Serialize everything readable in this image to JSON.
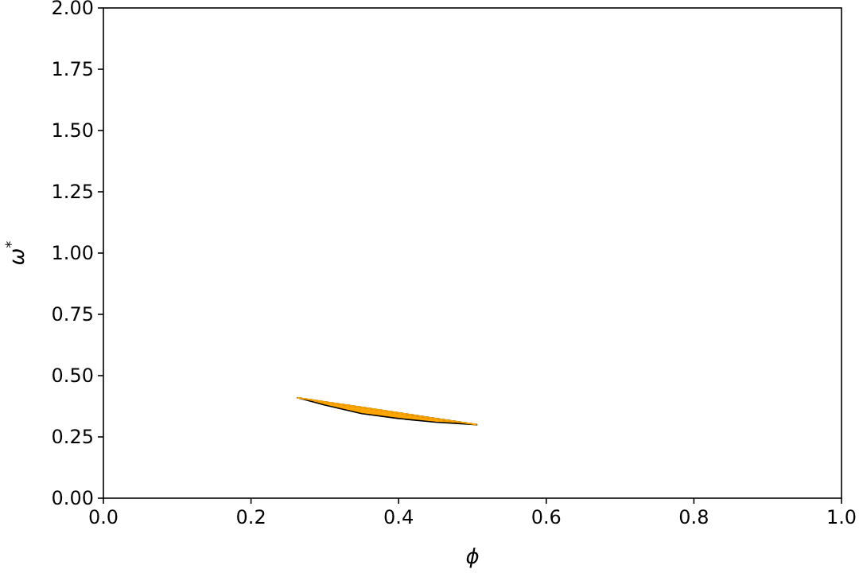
{
  "chart_data": {
    "type": "line",
    "xlabel": "ϕ",
    "ylabel": "ω$^{*}$",
    "xlim": [
      0,
      1
    ],
    "ylim": [
      0,
      2
    ],
    "xticks": [
      {
        "value": 0,
        "label": "0.0"
      },
      0.2,
      0.4,
      0.6,
      0.8,
      {
        "value": 1,
        "label": "1.0"
      }
    ],
    "yticks": [
      {
        "value": 0,
        "label": "0.00"
      },
      {
        "value": 0.25,
        "label": "0.25"
      },
      {
        "value": 0.5,
        "label": "0.50"
      },
      {
        "value": 0.75,
        "label": "0.75"
      },
      {
        "value": 1,
        "label": "1.00"
      },
      {
        "value": 1.25,
        "label": "1.25"
      },
      {
        "value": 1.5,
        "label": "1.50"
      },
      {
        "value": 1.75,
        "label": "1.75"
      },
      {
        "value": 2,
        "label": "2.00"
      }
    ],
    "series": [
      {
        "color": "#ffa500",
        "x": [
          0.263,
          0.3,
          0.35,
          0.4,
          0.45,
          0.506
        ],
        "values": [
          0.41,
          0.393,
          0.371,
          0.348,
          0.325,
          0.3
        ],
        "upper": [
          0.41,
          0.393,
          0.371,
          0.348,
          0.325,
          0.3
        ],
        "lower": [
          0.41,
          0.38,
          0.345,
          0.325,
          0.31,
          0.3
        ]
      }
    ]
  }
}
